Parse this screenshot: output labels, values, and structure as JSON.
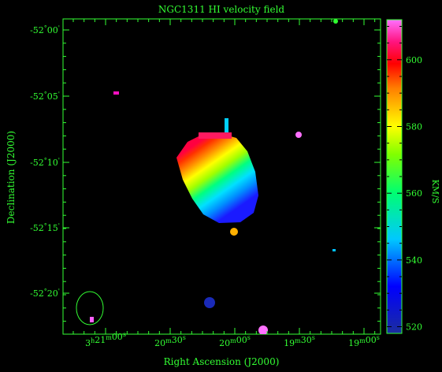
{
  "chart_data": {
    "type": "heatmap",
    "title": "NGC1311   HI velocity field",
    "xlabel": "Right Ascension (J2000)",
    "ylabel": "Declination (J2000)",
    "x_ticks": [
      {
        "h": "3",
        "m": "21",
        "s": "00"
      },
      {
        "h": "",
        "m": "20",
        "s": "30"
      },
      {
        "h": "",
        "m": "20",
        "s": "00"
      },
      {
        "h": "",
        "m": "19",
        "s": "30"
      },
      {
        "h": "",
        "m": "19",
        "s": "00"
      }
    ],
    "y_ticks": [
      {
        "d": "-52",
        "m": "00"
      },
      {
        "d": "-52",
        "m": "05"
      },
      {
        "d": "-52",
        "m": "10"
      },
      {
        "d": "-52",
        "m": "15"
      },
      {
        "d": "-52",
        "m": "20"
      }
    ],
    "colorbar": {
      "label": "KM/S",
      "min": 518,
      "max": 612,
      "ticks": [
        520,
        540,
        560,
        580,
        600
      ]
    },
    "velocity_gradient": {
      "low_kms": 530,
      "high_kms": 605,
      "direction": "lower-right to upper-left"
    },
    "colors": {
      "axis": "#33ff33",
      "background": "#000000"
    }
  }
}
